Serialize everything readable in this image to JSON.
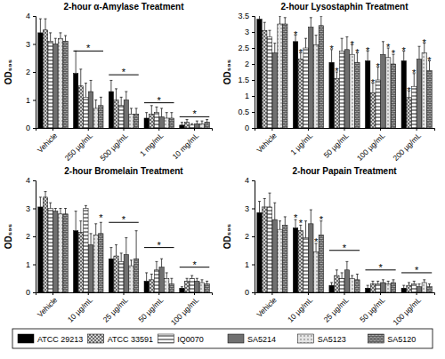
{
  "chart_data": [
    {
      "type": "bar",
      "title": "2-hour α-Amylase Treatment",
      "ylabel": "OD₅₉₅",
      "categories": [
        "Vehicle",
        "250 µg/mL",
        "500 µg/mL",
        "1 mg/mL",
        "10 mg/mL"
      ],
      "ylim": [
        0,
        4
      ],
      "yticks": [
        0,
        1,
        2,
        3,
        4
      ],
      "legend": "bottom",
      "series": [
        {
          "name": "ATCC 29213",
          "color": "#000000",
          "values": [
            3.4,
            1.95,
            1.3,
            0.35,
            0.1
          ],
          "errors": [
            0.5,
            0.8,
            0.4,
            0.2,
            0.1
          ]
        },
        {
          "name": "ATCC 33591",
          "color": "#d0d0d0",
          "values": [
            3.5,
            1.5,
            1.0,
            0.5,
            0.2
          ],
          "errors": [
            0.4,
            0.6,
            0.4,
            0.3,
            0.1
          ]
        },
        {
          "name": "IQ0070",
          "color": "#ffffff",
          "values": [
            3.1,
            1.1,
            0.8,
            0.55,
            0.1
          ],
          "errors": [
            0.3,
            0.5,
            0.3,
            0.2,
            0.05
          ]
        },
        {
          "name": "SA5214",
          "color": "#707070",
          "values": [
            3.0,
            1.3,
            1.0,
            0.4,
            0.15
          ],
          "errors": [
            0.2,
            0.4,
            0.3,
            0.3,
            0.1
          ]
        },
        {
          "name": "SA5123",
          "color": "#e4e4e4",
          "values": [
            3.2,
            0.7,
            0.5,
            0.35,
            0.15
          ],
          "errors": [
            0.2,
            0.3,
            0.2,
            0.2,
            0.1
          ]
        },
        {
          "name": "SA5120",
          "color": "#a8a8a8",
          "values": [
            3.1,
            0.8,
            0.5,
            0.35,
            0.2
          ],
          "errors": [
            0.2,
            0.3,
            0.2,
            0.2,
            0.1
          ]
        }
      ],
      "annotations": [
        {
          "text": "*",
          "category": 1,
          "y": 2.75
        },
        {
          "text": "*",
          "category": 2,
          "y": 1.9
        },
        {
          "text": "*",
          "category": 3,
          "y": 0.9
        },
        {
          "text": "*",
          "category": 4,
          "y": 0.4
        }
      ]
    },
    {
      "type": "bar",
      "title": "2-hour Lysostaphin Treatment",
      "ylabel": "OD₅₉₅",
      "categories": [
        "Vehicle",
        "1 µg/mL",
        "50 µg/mL",
        "100 µg/mL",
        "200 µg/mL"
      ],
      "ylim": [
        0,
        3.5
      ],
      "yticks": [
        0,
        0.5,
        1,
        1.5,
        2,
        2.5,
        3,
        3.5
      ],
      "series": [
        {
          "color": "#000000",
          "values": [
            3.4,
            2.7,
            2.05,
            2.1,
            2.1
          ],
          "errors": [
            0.3,
            0.2,
            0.4,
            0.3,
            0.3
          ]
        },
        {
          "color": "#d0d0d0",
          "values": [
            3.05,
            2.15,
            1.55,
            1.1,
            0.95
          ],
          "errors": [
            0.25,
            0.2,
            0.2,
            0.3,
            0.2
          ]
        },
        {
          "color": "#ffffff",
          "values": [
            2.85,
            2.5,
            2.4,
            1.5,
            1.3
          ],
          "errors": [
            0.2,
            0.3,
            0.4,
            0.4,
            0.4
          ]
        },
        {
          "color": "#707070",
          "values": [
            2.35,
            3.15,
            2.45,
            2.3,
            2.15
          ],
          "errors": [
            0.3,
            0.3,
            0.4,
            0.4,
            0.4
          ]
        },
        {
          "color": "#e4e4e4",
          "values": [
            3.25,
            2.6,
            2.3,
            2.2,
            2.35
          ],
          "errors": [
            0.25,
            0.3,
            0.3,
            0.3,
            0.3
          ]
        },
        {
          "color": "#a8a8a8",
          "values": [
            3.25,
            3.2,
            2.05,
            2.0,
            1.8
          ],
          "errors": [
            0.2,
            0.3,
            0.3,
            0.3,
            0.3
          ]
        }
      ],
      "annotations": [
        {
          "text": "*",
          "category": 1,
          "series": 0,
          "y": 2.95
        },
        {
          "text": "*",
          "category": 1,
          "series": 1,
          "y": 2.4
        },
        {
          "text": "*",
          "category": 2,
          "series": 0,
          "y": 2.5
        },
        {
          "text": "*",
          "category": 2,
          "series": 1,
          "y": 1.8
        },
        {
          "text": "*",
          "category": 2,
          "series": 4,
          "y": 2.65
        },
        {
          "text": "*",
          "category": 2,
          "series": 5,
          "y": 2.4
        },
        {
          "text": "*",
          "category": 3,
          "series": 0,
          "y": 2.45
        },
        {
          "text": "*",
          "category": 3,
          "series": 1,
          "y": 1.45
        },
        {
          "text": "*",
          "category": 3,
          "series": 2,
          "y": 1.95
        },
        {
          "text": "*",
          "category": 3,
          "series": 4,
          "y": 2.55
        },
        {
          "text": "*",
          "category": 3,
          "series": 5,
          "y": 2.35
        },
        {
          "text": "*",
          "category": 4,
          "series": 0,
          "y": 2.45
        },
        {
          "text": "*",
          "category": 4,
          "series": 1,
          "y": 1.2
        },
        {
          "text": "*",
          "category": 4,
          "series": 2,
          "y": 1.75
        },
        {
          "text": "*",
          "category": 4,
          "series": 4,
          "y": 2.7
        },
        {
          "text": "*",
          "category": 4,
          "series": 5,
          "y": 2.15
        }
      ]
    },
    {
      "type": "bar",
      "title": "2-hour Bromelain Treatment",
      "ylabel": "OD₅₉₅",
      "categories": [
        "Vehicle",
        "10 µg/mL",
        "25 µg/mL",
        "50 µg/mL",
        "100 µg/mL"
      ],
      "ylim": [
        0,
        4
      ],
      "yticks": [
        0,
        1,
        2,
        3,
        4
      ],
      "series": [
        {
          "color": "#000000",
          "values": [
            3.05,
            2.2,
            1.2,
            0.4,
            0.15
          ],
          "errors": [
            0.35,
            0.7,
            0.4,
            0.3,
            0.05
          ]
        },
        {
          "color": "#d0d0d0",
          "values": [
            3.4,
            2.15,
            1.3,
            0.45,
            0.4
          ],
          "errors": [
            0.2,
            0.4,
            0.4,
            0.2,
            0.1
          ]
        },
        {
          "color": "#ffffff",
          "values": [
            3.0,
            3.0,
            1.1,
            0.8,
            0.5
          ],
          "errors": [
            0.2,
            0.1,
            0.3,
            0.3,
            0.1
          ]
        },
        {
          "color": "#707070",
          "values": [
            2.9,
            1.7,
            1.35,
            0.9,
            0.4
          ],
          "errors": [
            0.1,
            0.4,
            0.6,
            0.3,
            0.1
          ]
        },
        {
          "color": "#e4e4e4",
          "values": [
            2.8,
            2.05,
            0.95,
            0.5,
            0.35
          ],
          "errors": [
            0.2,
            0.4,
            0.2,
            0.2,
            0.1
          ]
        },
        {
          "color": "#a8a8a8",
          "values": [
            2.8,
            2.1,
            1.2,
            0.3,
            0.3
          ],
          "errors": [
            0.2,
            0.4,
            1.0,
            0.2,
            0.1
          ]
        }
      ],
      "annotations": [
        {
          "text": "*",
          "category": 1,
          "series": 5,
          "y": 2.7
        },
        {
          "text": "*",
          "category": 2,
          "y": 2.5
        },
        {
          "text": "*",
          "category": 3,
          "y": 1.6
        },
        {
          "text": "*",
          "category": 4,
          "y": 0.9
        }
      ]
    },
    {
      "type": "bar",
      "title": "2-hour Papain Treatment",
      "ylabel": "OD₅₉₅",
      "categories": [
        "Vehicle",
        "10 µg/mL",
        "25 µg/mL",
        "50 µg/mL",
        "100 µg/mL"
      ],
      "ylim": [
        0,
        4
      ],
      "yticks": [
        0,
        1,
        2,
        3,
        4
      ],
      "series": [
        {
          "color": "#000000",
          "values": [
            2.85,
            2.3,
            0.25,
            0.15,
            0.15
          ],
          "errors": [
            0.4,
            0.3,
            0.1,
            0.1,
            0.1
          ]
        },
        {
          "color": "#d0d0d0",
          "values": [
            3.05,
            2.2,
            0.6,
            0.3,
            0.25
          ],
          "errors": [
            0.3,
            0.2,
            0.2,
            0.1,
            0.1
          ]
        },
        {
          "color": "#ffffff",
          "values": [
            3.05,
            1.95,
            0.5,
            0.3,
            0.3
          ],
          "errors": [
            0.5,
            0.6,
            0.2,
            0.1,
            0.1
          ]
        },
        {
          "color": "#707070",
          "values": [
            2.6,
            2.45,
            0.8,
            0.35,
            0.2
          ],
          "errors": [
            0.6,
            0.5,
            0.3,
            0.1,
            0.1
          ]
        },
        {
          "color": "#e4e4e4",
          "values": [
            2.25,
            1.45,
            0.5,
            0.3,
            0.35
          ],
          "errors": [
            0.3,
            0.3,
            0.1,
            0.1,
            0.1
          ]
        },
        {
          "color": "#a8a8a8",
          "values": [
            2.4,
            2.05,
            0.45,
            0.35,
            0.2
          ],
          "errors": [
            0.3,
            0.5,
            0.2,
            0.1,
            0.1
          ]
        }
      ],
      "annotations": [
        {
          "text": "*",
          "category": 1,
          "series": 0,
          "y": 2.7
        },
        {
          "text": "*",
          "category": 1,
          "series": 1,
          "y": 2.5
        },
        {
          "text": "*",
          "category": 1,
          "series": 4,
          "y": 1.85
        },
        {
          "text": "*",
          "category": 1,
          "series": 5,
          "y": 2.65
        },
        {
          "text": "*",
          "category": 2,
          "y": 1.5
        },
        {
          "text": "*",
          "category": 3,
          "y": 0.8
        },
        {
          "text": "*",
          "category": 4,
          "y": 0.7
        }
      ]
    }
  ]
}
